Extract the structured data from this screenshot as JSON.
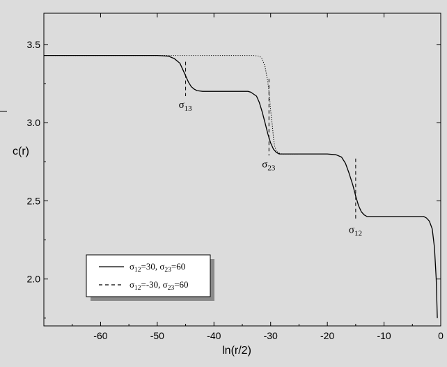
{
  "chart_data": {
    "type": "line",
    "xlabel": "ln(r/2)",
    "ylabel": "c(r)",
    "xlim": [
      -70,
      0
    ],
    "ylim": [
      1.7,
      3.7
    ],
    "x_ticks": [
      -60,
      -50,
      -40,
      -30,
      -20,
      -10,
      0
    ],
    "y_ticks": [
      2.0,
      2.5,
      3.0,
      3.5
    ],
    "x_tick_labels": [
      "-60",
      "-50",
      "-40",
      "-30",
      "-20",
      "-10",
      "0"
    ],
    "y_tick_labels": [
      "2.0",
      "2.5",
      "3.0",
      "3.5"
    ],
    "grid": false,
    "legend_position": "bottom-left",
    "series": [
      {
        "name": "σ12=30, σ23=60",
        "legend_main": [
          "σ",
          "=30, σ",
          "=60"
        ],
        "legend_subs": [
          "12",
          "23"
        ],
        "style": "solid",
        "points": [
          [
            -70,
            3.43
          ],
          [
            -52,
            3.43
          ],
          [
            -50,
            3.43
          ],
          [
            -48,
            3.425
          ],
          [
            -47,
            3.41
          ],
          [
            -46,
            3.38
          ],
          [
            -45.5,
            3.34
          ],
          [
            -45,
            3.3
          ],
          [
            -44.5,
            3.26
          ],
          [
            -44,
            3.23
          ],
          [
            -43.5,
            3.215
          ],
          [
            -43,
            3.205
          ],
          [
            -42,
            3.2
          ],
          [
            -40,
            3.2
          ],
          [
            -36,
            3.2
          ],
          [
            -34,
            3.2
          ],
          [
            -33.5,
            3.195
          ],
          [
            -32.5,
            3.17
          ],
          [
            -32,
            3.13
          ],
          [
            -31.5,
            3.07
          ],
          [
            -31,
            3.0
          ],
          [
            -30.5,
            2.93
          ],
          [
            -30,
            2.87
          ],
          [
            -29.5,
            2.83
          ],
          [
            -29,
            2.81
          ],
          [
            -28.5,
            2.8
          ],
          [
            -28,
            2.8
          ],
          [
            -25,
            2.8
          ],
          [
            -20,
            2.8
          ],
          [
            -18.5,
            2.795
          ],
          [
            -17.5,
            2.78
          ],
          [
            -16.8,
            2.74
          ],
          [
            -16.2,
            2.68
          ],
          [
            -15.5,
            2.6
          ],
          [
            -15,
            2.53
          ],
          [
            -14.5,
            2.47
          ],
          [
            -14,
            2.43
          ],
          [
            -13.5,
            2.41
          ],
          [
            -13,
            2.4
          ],
          [
            -10,
            2.4
          ],
          [
            -5,
            2.4
          ],
          [
            -3,
            2.4
          ],
          [
            -2.5,
            2.39
          ],
          [
            -2,
            2.37
          ],
          [
            -1.5,
            2.32
          ],
          [
            -1.1,
            2.2
          ],
          [
            -0.8,
            2.0
          ],
          [
            -0.6,
            1.75
          ]
        ]
      },
      {
        "name": "σ12=-30, σ23=60",
        "legend_main": [
          "σ",
          "=-30, σ",
          "=60"
        ],
        "legend_subs": [
          "12",
          "23"
        ],
        "style": "dotted",
        "points": [
          [
            -70,
            3.43
          ],
          [
            -36,
            3.43
          ],
          [
            -33,
            3.43
          ],
          [
            -32,
            3.425
          ],
          [
            -31.5,
            3.41
          ],
          [
            -31,
            3.36
          ],
          [
            -30.8,
            3.32
          ],
          [
            -30.5,
            3.26
          ],
          [
            -30.2,
            3.17
          ],
          [
            -30,
            3.08
          ],
          [
            -29.7,
            2.98
          ],
          [
            -29.5,
            2.9
          ],
          [
            -29.3,
            2.85
          ],
          [
            -29,
            2.82
          ],
          [
            -28.5,
            2.805
          ],
          [
            -28,
            2.8
          ],
          [
            -25,
            2.8
          ]
        ]
      }
    ],
    "markers": [
      {
        "x": -45,
        "y_top": 3.39,
        "y_bottom": 3.17,
        "label": "σ",
        "sub": "13"
      },
      {
        "x": -30.3,
        "y_top": 3.28,
        "y_bottom": 2.79,
        "label": "σ",
        "sub": "23"
      },
      {
        "x": -15,
        "y_top": 2.77,
        "y_bottom": 2.37,
        "label": "σ",
        "sub": "12"
      }
    ]
  }
}
